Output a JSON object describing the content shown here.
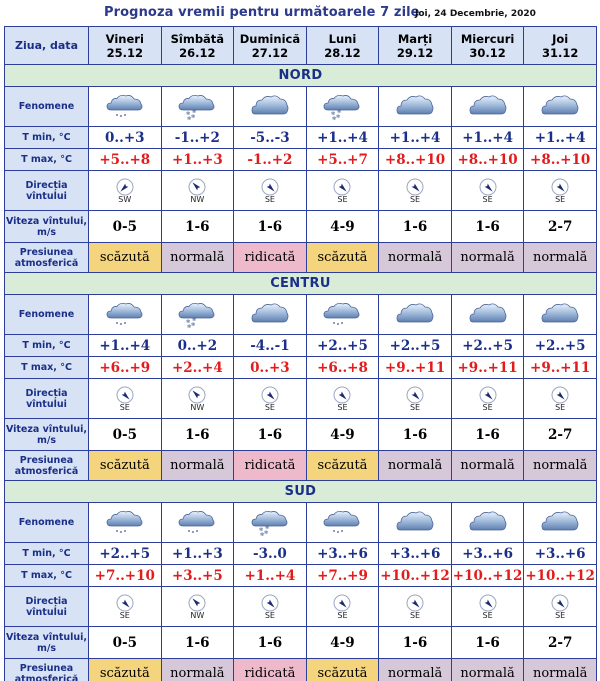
{
  "header": {
    "title": "Prognoza vremii pentru următoarele 7 zile",
    "date": "Joi, 24 Decembrie, 2020"
  },
  "first_col_label": "Ziua, data",
  "days": [
    {
      "name": "Vineri",
      "date": "25.12"
    },
    {
      "name": "Sîmbătă",
      "date": "26.12"
    },
    {
      "name": "Duminică",
      "date": "27.12"
    },
    {
      "name": "Luni",
      "date": "28.12"
    },
    {
      "name": "Marți",
      "date": "29.12"
    },
    {
      "name": "Miercuri",
      "date": "30.12"
    },
    {
      "name": "Joi",
      "date": "31.12"
    }
  ],
  "row_labels": {
    "phenomena": "Fenomene",
    "tmin": "T min, °C",
    "tmax": "T max, °C",
    "wind_dir": "Direcția vîntului",
    "wind_speed": "Viteza vîntului, m/s",
    "pressure": "Presiunea atmosferică"
  },
  "colors": {
    "border": "#2c3e9a",
    "header_bg": "#d7e2f4",
    "section_bg": "#d9ecd8",
    "tmin": "#1b2f88",
    "tmax": "#e21b1b",
    "pressure_low": "#f5d47e",
    "pressure_normal": "#d6c8d8",
    "pressure_high": "#efb9cc"
  },
  "sections": [
    {
      "name": "NORD",
      "phenomena": [
        "cloud-rain-icon",
        "cloud-snow-icon",
        "overcast-icon",
        "cloud-snow-icon",
        "overcast-icon",
        "overcast-icon",
        "overcast-icon"
      ],
      "tmin": [
        "0..+3",
        "-1..+2",
        "-5..-3",
        "+1..+4",
        "+1..+4",
        "+1..+4",
        "+1..+4"
      ],
      "tmax": [
        "+5..+8",
        "+1..+3",
        "-1..+2",
        "+5..+7",
        "+8..+10",
        "+8..+10",
        "+8..+10"
      ],
      "wind_dir": [
        "SW",
        "NW",
        "SE",
        "SE",
        "SE",
        "SE",
        "SE"
      ],
      "wind_speed": [
        "0-5",
        "1-6",
        "1-6",
        "4-9",
        "1-6",
        "1-6",
        "2-7"
      ],
      "pressure": [
        {
          "label": "scăzută",
          "level": "low"
        },
        {
          "label": "normală",
          "level": "norm"
        },
        {
          "label": "ridicată",
          "level": "high"
        },
        {
          "label": "scăzută",
          "level": "low"
        },
        {
          "label": "normală",
          "level": "norm"
        },
        {
          "label": "normală",
          "level": "norm"
        },
        {
          "label": "normală",
          "level": "norm"
        }
      ]
    },
    {
      "name": "CENTRU",
      "phenomena": [
        "cloud-rain-icon",
        "cloud-snow-icon",
        "overcast-icon",
        "cloud-rain-icon",
        "overcast-icon",
        "overcast-icon",
        "overcast-icon"
      ],
      "tmin": [
        "+1..+4",
        "0..+2",
        "-4..-1",
        "+2..+5",
        "+2..+5",
        "+2..+5",
        "+2..+5"
      ],
      "tmax": [
        "+6..+9",
        "+2..+4",
        "0..+3",
        "+6..+8",
        "+9..+11",
        "+9..+11",
        "+9..+11"
      ],
      "wind_dir": [
        "SE",
        "NW",
        "SE",
        "SE",
        "SE",
        "SE",
        "SE"
      ],
      "wind_speed": [
        "0-5",
        "1-6",
        "1-6",
        "4-9",
        "1-6",
        "1-6",
        "2-7"
      ],
      "pressure": [
        {
          "label": "scăzută",
          "level": "low"
        },
        {
          "label": "normală",
          "level": "norm"
        },
        {
          "label": "ridicată",
          "level": "high"
        },
        {
          "label": "scăzută",
          "level": "low"
        },
        {
          "label": "normală",
          "level": "norm"
        },
        {
          "label": "normală",
          "level": "norm"
        },
        {
          "label": "normală",
          "level": "norm"
        }
      ]
    },
    {
      "name": "SUD",
      "phenomena": [
        "cloud-rain-icon",
        "cloud-rain-icon",
        "cloud-snow-icon",
        "cloud-rain-icon",
        "overcast-icon",
        "overcast-icon",
        "overcast-icon"
      ],
      "tmin": [
        "+2..+5",
        "+1..+3",
        "-3..0",
        "+3..+6",
        "+3..+6",
        "+3..+6",
        "+3..+6"
      ],
      "tmax": [
        "+7..+10",
        "+3..+5",
        "+1..+4",
        "+7..+9",
        "+10..+12",
        "+10..+12",
        "+10..+12"
      ],
      "wind_dir": [
        "SE",
        "NW",
        "SE",
        "SE",
        "SE",
        "SE",
        "SE"
      ],
      "wind_speed": [
        "0-5",
        "1-6",
        "1-6",
        "4-9",
        "1-6",
        "1-6",
        "2-7"
      ],
      "pressure": [
        {
          "label": "scăzută",
          "level": "low"
        },
        {
          "label": "normală",
          "level": "norm"
        },
        {
          "label": "ridicată",
          "level": "high"
        },
        {
          "label": "scăzută",
          "level": "low"
        },
        {
          "label": "normală",
          "level": "norm"
        },
        {
          "label": "normală",
          "level": "norm"
        },
        {
          "label": "normală",
          "level": "norm"
        }
      ]
    }
  ]
}
